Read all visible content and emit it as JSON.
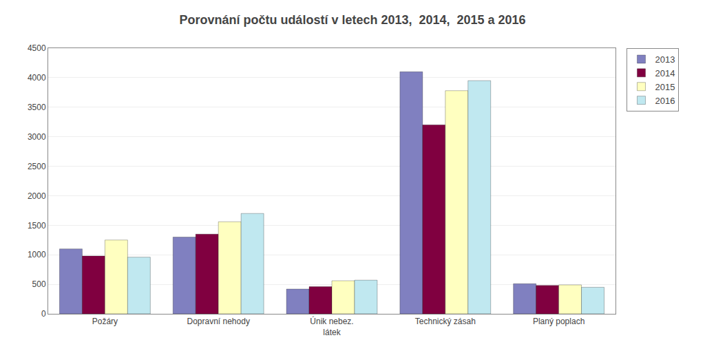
{
  "chart_data": {
    "type": "bar",
    "title": "Porovnání počtu událostí v letech 2013,  2014,  2015 a 2016",
    "categories": [
      "Požáry",
      "Dopravní nehody",
      "Únik nebez.\nlátek",
      "Technický zásah",
      "Planý poplach"
    ],
    "series": [
      {
        "name": "2013",
        "color": "#8080c0",
        "values": [
          1100,
          1300,
          420,
          4100,
          510
        ]
      },
      {
        "name": "2014",
        "color": "#800040",
        "values": [
          980,
          1350,
          460,
          3200,
          480
        ]
      },
      {
        "name": "2015",
        "color": "#ffffc0",
        "values": [
          1250,
          1560,
          560,
          3780,
          490
        ]
      },
      {
        "name": "2016",
        "color": "#c0e8f0",
        "values": [
          960,
          1700,
          570,
          3950,
          450
        ]
      }
    ],
    "ylim": [
      0,
      4500
    ],
    "yticks": [
      0,
      500,
      1000,
      1500,
      2000,
      2500,
      3000,
      3500,
      4000,
      4500
    ],
    "grid": true,
    "legend": "upper right"
  }
}
